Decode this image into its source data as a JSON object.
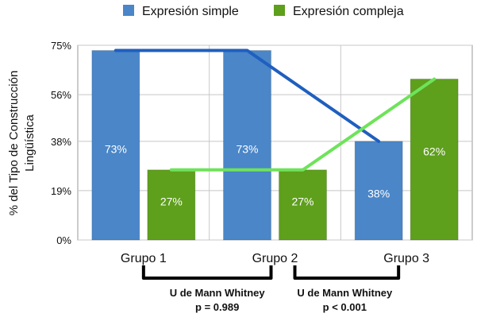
{
  "chart_data": {
    "type": "bar",
    "categories": [
      "Grupo 1",
      "Grupo 2",
      "Grupo 3"
    ],
    "series": [
      {
        "name": "Expresión simple",
        "values": [
          73,
          73,
          38
        ],
        "labels": [
          "73%",
          "73%",
          "38%"
        ],
        "color": "#4a86c8",
        "line_color": "#1f5fbf"
      },
      {
        "name": "Expresión compleja",
        "values": [
          27,
          27,
          62
        ],
        "labels": [
          "27%",
          "27%",
          "62%"
        ],
        "color": "#5e9f1c",
        "line_color": "#6ee35a"
      }
    ],
    "ylabel": "%  del Tipo de Construcción Lingüística",
    "yticks": [
      0,
      19,
      38,
      56,
      75
    ],
    "ytick_labels": [
      "0%",
      "19%",
      "38%",
      "56%",
      "75%"
    ],
    "ylim": [
      0,
      75
    ],
    "grid": true,
    "legend": "top",
    "trend_lines": true,
    "comparisons": [
      {
        "groups": [
          "Grupo 1",
          "Grupo 2"
        ],
        "test": "U de Mann Whitney",
        "p": "p = 0.989"
      },
      {
        "groups": [
          "Grupo 2",
          "Grupo 3"
        ],
        "test": "U de Mann Whitney",
        "p": "p < 0.001"
      }
    ]
  }
}
